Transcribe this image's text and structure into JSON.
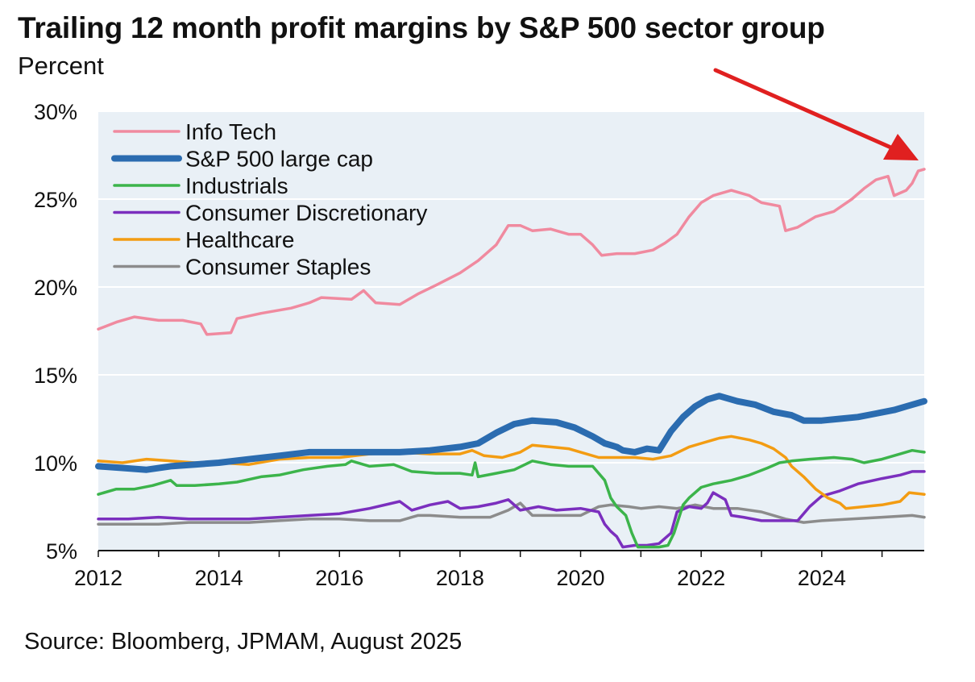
{
  "colors": {
    "plot_bg": "#e9f0f6",
    "grid": "#ffffff",
    "arrow": "#e02020"
  },
  "annotation": {
    "type": "arrow",
    "points_to": "Info Tech latest value",
    "color": "#e02020"
  },
  "chart_data": {
    "type": "line",
    "title": "Trailing 12 month profit margins by S&P 500 sector group",
    "subtitle": "Percent",
    "source": "Source: Bloomberg, JPMAM, August 2025",
    "xlabel": "",
    "ylabel": "Percent",
    "xlim": [
      2012,
      2025.7
    ],
    "ylim": [
      5,
      30
    ],
    "x_ticks": [
      2012,
      2014,
      2016,
      2018,
      2020,
      2022,
      2024
    ],
    "x_tick_labels": [
      "2012",
      "2014",
      "2016",
      "2018",
      "2020",
      "2022",
      "2024"
    ],
    "y_ticks": [
      5,
      10,
      15,
      20,
      25,
      30
    ],
    "y_tick_labels": [
      "5%",
      "10%",
      "15%",
      "20%",
      "25%",
      "30%"
    ],
    "grid": true,
    "legend": "top-left",
    "series": [
      {
        "name": "Info Tech",
        "color": "#f08a9f",
        "width": 3.5,
        "points": [
          [
            2012,
            17.6
          ],
          [
            2012.3,
            18.0
          ],
          [
            2012.6,
            18.3
          ],
          [
            2013,
            18.1
          ],
          [
            2013.4,
            18.1
          ],
          [
            2013.7,
            17.9
          ],
          [
            2013.8,
            17.3
          ],
          [
            2014.2,
            17.4
          ],
          [
            2014.3,
            18.2
          ],
          [
            2014.7,
            18.5
          ],
          [
            2015.2,
            18.8
          ],
          [
            2015.5,
            19.1
          ],
          [
            2015.7,
            19.4
          ],
          [
            2016.2,
            19.3
          ],
          [
            2016.4,
            19.8
          ],
          [
            2016.6,
            19.1
          ],
          [
            2017,
            19.0
          ],
          [
            2017.3,
            19.6
          ],
          [
            2017.6,
            20.1
          ],
          [
            2018,
            20.8
          ],
          [
            2018.3,
            21.5
          ],
          [
            2018.6,
            22.4
          ],
          [
            2018.8,
            23.5
          ],
          [
            2019,
            23.5
          ],
          [
            2019.2,
            23.2
          ],
          [
            2019.5,
            23.3
          ],
          [
            2019.8,
            23.0
          ],
          [
            2020,
            23.0
          ],
          [
            2020.2,
            22.4
          ],
          [
            2020.35,
            21.8
          ],
          [
            2020.6,
            21.9
          ],
          [
            2020.9,
            21.9
          ],
          [
            2021.2,
            22.1
          ],
          [
            2021.4,
            22.5
          ],
          [
            2021.6,
            23.0
          ],
          [
            2021.8,
            24.0
          ],
          [
            2022,
            24.8
          ],
          [
            2022.2,
            25.2
          ],
          [
            2022.5,
            25.5
          ],
          [
            2022.8,
            25.2
          ],
          [
            2023,
            24.8
          ],
          [
            2023.3,
            24.6
          ],
          [
            2023.4,
            23.2
          ],
          [
            2023.6,
            23.4
          ],
          [
            2023.9,
            24.0
          ],
          [
            2024.2,
            24.3
          ],
          [
            2024.5,
            25.0
          ],
          [
            2024.7,
            25.6
          ],
          [
            2024.9,
            26.1
          ],
          [
            2025.1,
            26.3
          ],
          [
            2025.2,
            25.2
          ],
          [
            2025.4,
            25.5
          ],
          [
            2025.5,
            25.9
          ],
          [
            2025.6,
            26.6
          ],
          [
            2025.7,
            26.7
          ]
        ]
      },
      {
        "name": "S&P 500 large cap",
        "color": "#2b6cb0",
        "width": 8,
        "points": [
          [
            2012,
            9.8
          ],
          [
            2012.4,
            9.7
          ],
          [
            2012.8,
            9.6
          ],
          [
            2013.2,
            9.8
          ],
          [
            2013.6,
            9.9
          ],
          [
            2014,
            10.0
          ],
          [
            2014.5,
            10.2
          ],
          [
            2015,
            10.4
          ],
          [
            2015.5,
            10.6
          ],
          [
            2016,
            10.6
          ],
          [
            2016.5,
            10.6
          ],
          [
            2017,
            10.6
          ],
          [
            2017.5,
            10.7
          ],
          [
            2018,
            10.9
          ],
          [
            2018.3,
            11.1
          ],
          [
            2018.6,
            11.7
          ],
          [
            2018.9,
            12.2
          ],
          [
            2019.2,
            12.4
          ],
          [
            2019.6,
            12.3
          ],
          [
            2019.9,
            12.0
          ],
          [
            2020.2,
            11.5
          ],
          [
            2020.4,
            11.1
          ],
          [
            2020.6,
            10.9
          ],
          [
            2020.7,
            10.7
          ],
          [
            2020.9,
            10.6
          ],
          [
            2021.1,
            10.8
          ],
          [
            2021.3,
            10.7
          ],
          [
            2021.5,
            11.8
          ],
          [
            2021.7,
            12.6
          ],
          [
            2021.9,
            13.2
          ],
          [
            2022.1,
            13.6
          ],
          [
            2022.3,
            13.8
          ],
          [
            2022.6,
            13.5
          ],
          [
            2022.9,
            13.3
          ],
          [
            2023.2,
            12.9
          ],
          [
            2023.5,
            12.7
          ],
          [
            2023.7,
            12.4
          ],
          [
            2024,
            12.4
          ],
          [
            2024.3,
            12.5
          ],
          [
            2024.6,
            12.6
          ],
          [
            2024.9,
            12.8
          ],
          [
            2025.2,
            13.0
          ],
          [
            2025.4,
            13.2
          ],
          [
            2025.7,
            13.5
          ]
        ]
      },
      {
        "name": "Industrials",
        "color": "#3cb44b",
        "width": 3.5,
        "points": [
          [
            2012,
            8.2
          ],
          [
            2012.3,
            8.5
          ],
          [
            2012.6,
            8.5
          ],
          [
            2012.9,
            8.7
          ],
          [
            2013.2,
            9.0
          ],
          [
            2013.3,
            8.7
          ],
          [
            2013.6,
            8.7
          ],
          [
            2014,
            8.8
          ],
          [
            2014.3,
            8.9
          ],
          [
            2014.7,
            9.2
          ],
          [
            2015,
            9.3
          ],
          [
            2015.4,
            9.6
          ],
          [
            2015.8,
            9.8
          ],
          [
            2016.1,
            9.9
          ],
          [
            2016.2,
            10.1
          ],
          [
            2016.5,
            9.8
          ],
          [
            2016.9,
            9.9
          ],
          [
            2017.2,
            9.5
          ],
          [
            2017.6,
            9.4
          ],
          [
            2018,
            9.4
          ],
          [
            2018.2,
            9.3
          ],
          [
            2018.25,
            10.0
          ],
          [
            2018.3,
            9.2
          ],
          [
            2018.6,
            9.4
          ],
          [
            2018.9,
            9.6
          ],
          [
            2019.2,
            10.1
          ],
          [
            2019.5,
            9.9
          ],
          [
            2019.8,
            9.8
          ],
          [
            2020,
            9.8
          ],
          [
            2020.2,
            9.8
          ],
          [
            2020.4,
            9.0
          ],
          [
            2020.5,
            8.0
          ],
          [
            2020.6,
            7.5
          ],
          [
            2020.75,
            7.0
          ],
          [
            2020.85,
            6.0
          ],
          [
            2020.95,
            5.2
          ],
          [
            2021.1,
            5.2
          ],
          [
            2021.3,
            5.2
          ],
          [
            2021.45,
            5.3
          ],
          [
            2021.55,
            6.0
          ],
          [
            2021.7,
            7.6
          ],
          [
            2021.8,
            8.0
          ],
          [
            2022,
            8.6
          ],
          [
            2022.2,
            8.8
          ],
          [
            2022.5,
            9.0
          ],
          [
            2022.8,
            9.3
          ],
          [
            2023.1,
            9.7
          ],
          [
            2023.3,
            10.0
          ],
          [
            2023.5,
            10.1
          ],
          [
            2023.8,
            10.2
          ],
          [
            2024.2,
            10.3
          ],
          [
            2024.5,
            10.2
          ],
          [
            2024.7,
            10.0
          ],
          [
            2025,
            10.2
          ],
          [
            2025.3,
            10.5
          ],
          [
            2025.5,
            10.7
          ],
          [
            2025.7,
            10.6
          ]
        ]
      },
      {
        "name": "Consumer Discretionary",
        "color": "#7b2fbe",
        "width": 3.5,
        "points": [
          [
            2012,
            6.8
          ],
          [
            2012.5,
            6.8
          ],
          [
            2013,
            6.9
          ],
          [
            2013.5,
            6.8
          ],
          [
            2014,
            6.8
          ],
          [
            2014.5,
            6.8
          ],
          [
            2015,
            6.9
          ],
          [
            2015.5,
            7.0
          ],
          [
            2016,
            7.1
          ],
          [
            2016.5,
            7.4
          ],
          [
            2017,
            7.8
          ],
          [
            2017.2,
            7.3
          ],
          [
            2017.5,
            7.6
          ],
          [
            2017.8,
            7.8
          ],
          [
            2018,
            7.4
          ],
          [
            2018.3,
            7.5
          ],
          [
            2018.6,
            7.7
          ],
          [
            2018.8,
            7.9
          ],
          [
            2019,
            7.3
          ],
          [
            2019.3,
            7.5
          ],
          [
            2019.6,
            7.3
          ],
          [
            2020,
            7.4
          ],
          [
            2020.3,
            7.2
          ],
          [
            2020.4,
            6.5
          ],
          [
            2020.5,
            6.1
          ],
          [
            2020.6,
            5.8
          ],
          [
            2020.7,
            5.2
          ],
          [
            2020.9,
            5.3
          ],
          [
            2021.1,
            5.3
          ],
          [
            2021.3,
            5.4
          ],
          [
            2021.5,
            6.0
          ],
          [
            2021.6,
            7.2
          ],
          [
            2021.8,
            7.5
          ],
          [
            2022.0,
            7.4
          ],
          [
            2022.1,
            7.7
          ],
          [
            2022.2,
            8.3
          ],
          [
            2022.4,
            7.9
          ],
          [
            2022.5,
            7.0
          ],
          [
            2022.7,
            6.9
          ],
          [
            2023,
            6.7
          ],
          [
            2023.4,
            6.7
          ],
          [
            2023.6,
            6.7
          ],
          [
            2023.8,
            7.5
          ],
          [
            2024.0,
            8.1
          ],
          [
            2024.3,
            8.4
          ],
          [
            2024.6,
            8.8
          ],
          [
            2025,
            9.1
          ],
          [
            2025.3,
            9.3
          ],
          [
            2025.5,
            9.5
          ],
          [
            2025.7,
            9.5
          ]
        ]
      },
      {
        "name": "Healthcare",
        "color": "#f39c12",
        "width": 3.5,
        "points": [
          [
            2012,
            10.1
          ],
          [
            2012.4,
            10.0
          ],
          [
            2012.8,
            10.2
          ],
          [
            2013.2,
            10.1
          ],
          [
            2013.6,
            10.0
          ],
          [
            2014,
            10.0
          ],
          [
            2014.5,
            9.9
          ],
          [
            2015,
            10.2
          ],
          [
            2015.5,
            10.3
          ],
          [
            2016,
            10.3
          ],
          [
            2016.5,
            10.5
          ],
          [
            2017,
            10.6
          ],
          [
            2017.5,
            10.5
          ],
          [
            2018,
            10.5
          ],
          [
            2018.2,
            10.7
          ],
          [
            2018.4,
            10.4
          ],
          [
            2018.7,
            10.3
          ],
          [
            2019,
            10.6
          ],
          [
            2019.2,
            11.0
          ],
          [
            2019.5,
            10.9
          ],
          [
            2019.8,
            10.8
          ],
          [
            2020,
            10.6
          ],
          [
            2020.3,
            10.3
          ],
          [
            2020.6,
            10.3
          ],
          [
            2020.9,
            10.3
          ],
          [
            2021.2,
            10.2
          ],
          [
            2021.5,
            10.4
          ],
          [
            2021.8,
            10.9
          ],
          [
            2022,
            11.1
          ],
          [
            2022.3,
            11.4
          ],
          [
            2022.5,
            11.5
          ],
          [
            2022.8,
            11.3
          ],
          [
            2023,
            11.1
          ],
          [
            2023.2,
            10.8
          ],
          [
            2023.4,
            10.3
          ],
          [
            2023.5,
            9.8
          ],
          [
            2023.7,
            9.2
          ],
          [
            2023.9,
            8.5
          ],
          [
            2024.1,
            8.0
          ],
          [
            2024.3,
            7.7
          ],
          [
            2024.4,
            7.4
          ],
          [
            2024.7,
            7.5
          ],
          [
            2025,
            7.6
          ],
          [
            2025.3,
            7.8
          ],
          [
            2025.45,
            8.3
          ],
          [
            2025.7,
            8.2
          ]
        ]
      },
      {
        "name": "Consumer Staples",
        "color": "#8c8c8c",
        "width": 3.5,
        "points": [
          [
            2012,
            6.5
          ],
          [
            2012.5,
            6.5
          ],
          [
            2013,
            6.5
          ],
          [
            2013.5,
            6.6
          ],
          [
            2014,
            6.6
          ],
          [
            2014.5,
            6.6
          ],
          [
            2015,
            6.7
          ],
          [
            2015.5,
            6.8
          ],
          [
            2016,
            6.8
          ],
          [
            2016.5,
            6.7
          ],
          [
            2017,
            6.7
          ],
          [
            2017.3,
            7.0
          ],
          [
            2017.5,
            7.0
          ],
          [
            2018,
            6.9
          ],
          [
            2018.5,
            6.9
          ],
          [
            2018.8,
            7.3
          ],
          [
            2019,
            7.7
          ],
          [
            2019.2,
            7.0
          ],
          [
            2019.5,
            7.0
          ],
          [
            2020,
            7.0
          ],
          [
            2020.3,
            7.5
          ],
          [
            2020.5,
            7.6
          ],
          [
            2020.8,
            7.5
          ],
          [
            2021,
            7.4
          ],
          [
            2021.3,
            7.5
          ],
          [
            2021.6,
            7.4
          ],
          [
            2021.9,
            7.6
          ],
          [
            2022.2,
            7.4
          ],
          [
            2022.6,
            7.4
          ],
          [
            2023,
            7.2
          ],
          [
            2023.4,
            6.8
          ],
          [
            2023.7,
            6.6
          ],
          [
            2024,
            6.7
          ],
          [
            2024.5,
            6.8
          ],
          [
            2025,
            6.9
          ],
          [
            2025.5,
            7.0
          ],
          [
            2025.7,
            6.9
          ]
        ]
      }
    ]
  }
}
